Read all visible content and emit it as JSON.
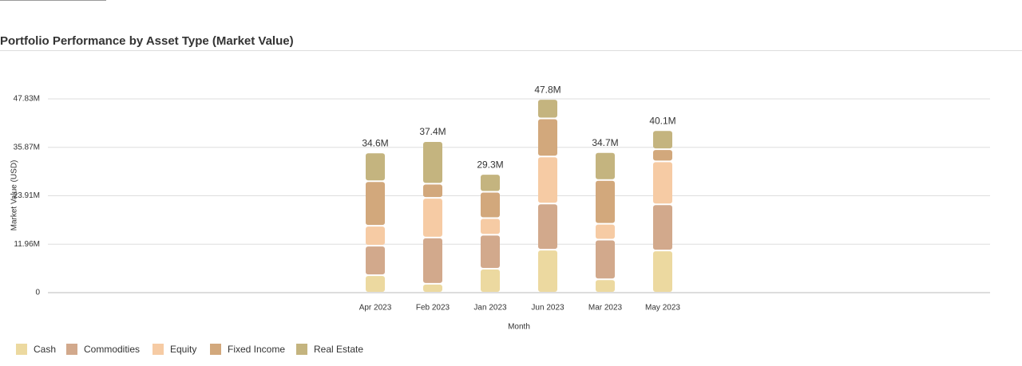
{
  "chart_data": {
    "type": "stacked_bar",
    "title": "Portfolio Performance by Asset Type (Market Value)",
    "x_label": "Month",
    "y_label": "Market Value (USD)",
    "categories": [
      "Apr 2023",
      "Feb 2023",
      "Jan 2023",
      "Jun 2023",
      "Mar 2023",
      "May 2023"
    ],
    "series": [
      {
        "name": "Cash",
        "color": "#ecd9a0",
        "values": [
          4300000,
          2200000,
          5900000,
          10600000,
          3300000,
          10400000
        ]
      },
      {
        "name": "Commodities",
        "color": "#d2a98c",
        "values": [
          7300000,
          11400000,
          8400000,
          11400000,
          9800000,
          11400000
        ]
      },
      {
        "name": "Equity",
        "color": "#f6cba4",
        "values": [
          4900000,
          9800000,
          4100000,
          11600000,
          3900000,
          10600000
        ]
      },
      {
        "name": "Fixed Income",
        "color": "#d2a87c",
        "values": [
          11000000,
          3500000,
          6500000,
          9400000,
          10800000,
          3000000
        ]
      },
      {
        "name": "Real Estate",
        "color": "#c4b47f",
        "values": [
          7100000,
          10500000,
          4400000,
          4800000,
          6900000,
          4700000
        ]
      }
    ],
    "totals": [
      34600000,
      37400000,
      29300000,
      47800000,
      34700000,
      40100000
    ],
    "total_labels": [
      "34.6M",
      "37.4M",
      "29.3M",
      "47.8M",
      "34.7M",
      "40.1M"
    ],
    "ylim": [
      0,
      47830000
    ],
    "yticks": [
      0,
      {
        "value": 11960000,
        "label": "11.96M"
      },
      {
        "value": 23910000,
        "label": "23.91M"
      },
      {
        "value": 35870000,
        "label": "35.87M"
      },
      {
        "value": 47830000,
        "label": "47.83M"
      }
    ],
    "grid": true,
    "legend": "bottom-left"
  }
}
